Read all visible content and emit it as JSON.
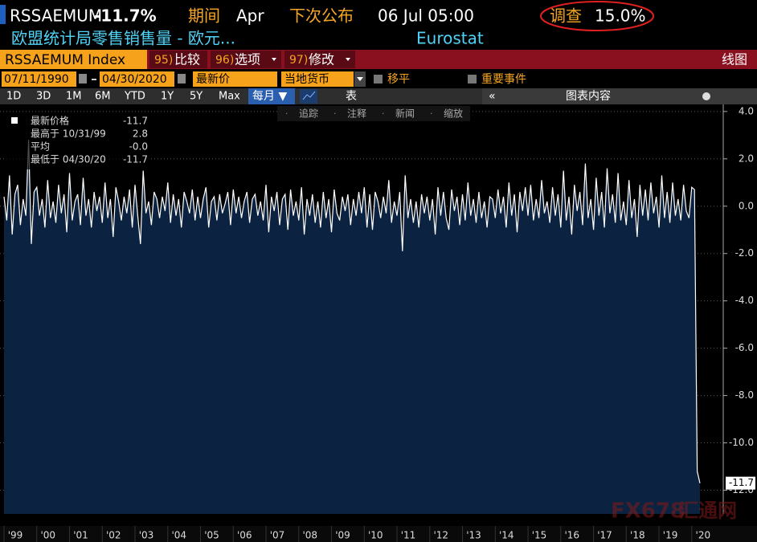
{
  "header": {
    "ticker": "RSSAEMUM",
    "last": "-11.7%",
    "period_label": "期间",
    "period": "Apr",
    "next_label": "下次公布",
    "next": "06 Jul 05:00",
    "survey_label": "调查",
    "survey": "15.0%",
    "description": "欧盟统计局零售销售量 - 欧元...",
    "source": "Eurostat"
  },
  "toolbar": {
    "security": "RSSAEMUM Index",
    "buttons": [
      {
        "num": "95)",
        "label": "比较"
      },
      {
        "num": "96)",
        "label": "选项"
      },
      {
        "num": "97)",
        "label": "修改"
      }
    ],
    "view": "线图",
    "start_date": "07/11/1990",
    "end_date": "04/30/2020",
    "price": "最新价",
    "currency": "当地货币",
    "smooth": "移平",
    "events": "重要事件",
    "ranges": [
      "1D",
      "3D",
      "1M",
      "6M",
      "YTD",
      "1Y",
      "5Y",
      "Max"
    ],
    "frequency": "每月 ▼",
    "table": "表",
    "content": "图表内容",
    "tools": [
      "追踪",
      "注释",
      "新闻",
      "缩放"
    ]
  },
  "watermark": {
    "brand": "FX678",
    "name": "汇通网"
  },
  "chart_data": {
    "type": "line",
    "legend_stats": [
      {
        "label": "最新价格",
        "value": "-11.7"
      },
      {
        "label": "最高于 10/31/99",
        "value": "2.8"
      },
      {
        "label": "平均",
        "value": "-0.0"
      },
      {
        "label": "最低于 04/30/20",
        "value": "-11.7"
      }
    ],
    "categories": [
      "'99",
      null,
      null,
      null,
      null,
      null,
      null,
      null,
      null,
      null,
      null,
      null,
      "'00",
      null,
      null,
      null,
      null,
      null,
      null,
      null,
      null,
      null,
      null,
      null,
      "'01",
      null,
      null,
      null,
      null,
      null,
      null,
      null,
      null,
      null,
      null,
      null,
      "'02",
      null,
      null,
      null,
      null,
      null,
      null,
      null,
      null,
      null,
      null,
      null,
      "'03",
      null,
      null,
      null,
      null,
      null,
      null,
      null,
      null,
      null,
      null,
      null,
      "'04",
      null,
      null,
      null,
      null,
      null,
      null,
      null,
      null,
      null,
      null,
      null,
      "'05",
      null,
      null,
      null,
      null,
      null,
      null,
      null,
      null,
      null,
      null,
      null,
      "'06",
      null,
      null,
      null,
      null,
      null,
      null,
      null,
      null,
      null,
      null,
      null,
      "'07",
      null,
      null,
      null,
      null,
      null,
      null,
      null,
      null,
      null,
      null,
      null,
      "'08",
      null,
      null,
      null,
      null,
      null,
      null,
      null,
      null,
      null,
      null,
      null,
      "'09",
      null,
      null,
      null,
      null,
      null,
      null,
      null,
      null,
      null,
      null,
      null,
      "'10",
      null,
      null,
      null,
      null,
      null,
      null,
      null,
      null,
      null,
      null,
      null,
      "'11",
      null,
      null,
      null,
      null,
      null,
      null,
      null,
      null,
      null,
      null,
      null,
      "'12",
      null,
      null,
      null,
      null,
      null,
      null,
      null,
      null,
      null,
      null,
      null,
      "'13",
      null,
      null,
      null,
      null,
      null,
      null,
      null,
      null,
      null,
      null,
      null,
      "'14",
      null,
      null,
      null,
      null,
      null,
      null,
      null,
      null,
      null,
      null,
      null,
      "'15",
      null,
      null,
      null,
      null,
      null,
      null,
      null,
      null,
      null,
      null,
      null,
      "'16",
      null,
      null,
      null,
      null,
      null,
      null,
      null,
      null,
      null,
      null,
      null,
      "'17",
      null,
      null,
      null,
      null,
      null,
      null,
      null,
      null,
      null,
      null,
      null,
      "'18",
      null,
      null,
      null,
      null,
      null,
      null,
      null,
      null,
      null,
      null,
      null,
      "'19",
      null,
      null,
      null,
      null,
      null,
      null,
      null,
      null,
      null,
      null,
      null,
      "'20",
      null,
      null,
      null
    ],
    "series": [
      {
        "name": "最新价格",
        "color": "#ffffff",
        "fill": "#0b2341",
        "values": [
          0.4,
          -0.6,
          1.3,
          -1.2,
          0.5,
          0.9,
          -0.8,
          0.3,
          -0.4,
          2.8,
          -1.6,
          0.6,
          0.8,
          -0.4,
          0.3,
          -0.9,
          1.1,
          -0.5,
          0.2,
          -0.7,
          0.9,
          -0.3,
          0.5,
          -1.1,
          1.4,
          -0.6,
          0.2,
          0.5,
          -0.8,
          1.2,
          -0.4,
          0.3,
          -0.9,
          0.6,
          -0.2,
          0.4,
          -0.7,
          1.0,
          -0.5,
          0.3,
          -1.3,
          0.8,
          0.2,
          -0.6,
          0.4,
          -0.3,
          0.7,
          -0.9,
          0.9,
          -0.4,
          -1.6,
          1.5,
          -0.3,
          0.2,
          -0.8,
          0.6,
          0.3,
          -0.5,
          0.4,
          -0.2,
          1.0,
          -0.7,
          0.5,
          -0.4,
          0.3,
          -0.9,
          0.6,
          0.2,
          -0.3,
          0.7,
          -0.6,
          0.4,
          -0.5,
          0.3,
          0.8,
          -0.9,
          0.2,
          0.4,
          -0.6,
          0.5,
          -0.3,
          0.1,
          0.6,
          -0.8,
          0.7,
          -0.3,
          0.4,
          -0.5,
          0.2,
          0.6,
          -0.7,
          0.3,
          0.5,
          -0.4,
          0.2,
          -0.6,
          0.9,
          -1.1,
          0.4,
          -0.2,
          0.6,
          -0.8,
          0.3,
          0.5,
          -1.0,
          0.7,
          -0.4,
          0.2,
          -0.6,
          0.8,
          -1.2,
          0.3,
          -0.4,
          0.5,
          -0.7,
          0.2,
          -0.9,
          0.6,
          -0.5,
          0.3,
          -1.1,
          0.7,
          -0.3,
          -0.6,
          0.4,
          -0.2,
          0.5,
          -0.8,
          0.3,
          -0.4,
          0.6,
          -0.3,
          0.8,
          -0.9,
          0.5,
          -1.0,
          0.6,
          0.2,
          -0.5,
          0.4,
          -0.3,
          1.1,
          -0.7,
          0.2,
          -0.4,
          0.6,
          -1.9,
          1.3,
          -0.5,
          0.3,
          -0.7,
          0.2,
          -0.9,
          0.5,
          -0.3,
          0.4,
          -0.6,
          0.3,
          -1.2,
          0.8,
          -0.4,
          0.6,
          -0.5,
          -1.0,
          0.7,
          -0.2,
          0.4,
          -0.8,
          0.5,
          -0.6,
          1.0,
          -0.4,
          0.3,
          -0.7,
          0.6,
          -0.5,
          0.2,
          -0.9,
          0.4,
          0.3,
          -0.5,
          0.7,
          -0.3,
          0.4,
          -0.9,
          1.0,
          -0.4,
          0.5,
          -1.1,
          0.6,
          -0.2,
          0.8,
          -0.4,
          0.9,
          -0.6,
          0.3,
          -0.5,
          1.1,
          -0.3,
          0.2,
          -0.7,
          0.8,
          -0.4,
          0.5,
          -0.9,
          1.5,
          -0.6,
          0.4,
          -1.2,
          0.9,
          -0.2,
          0.6,
          -0.8,
          1.8,
          -0.5,
          0.3,
          -1.0,
          1.2,
          -0.4,
          0.6,
          -0.9,
          1.6,
          -0.3,
          0.5,
          -0.7,
          1.4,
          -0.6,
          0.2,
          -0.8,
          1.1,
          -0.5,
          0.3,
          -1.3,
          0.9,
          -0.4,
          0.7,
          -0.6,
          1.0,
          -0.3,
          0.4,
          -0.9,
          1.3,
          -0.5,
          0.6,
          -0.7,
          1.0,
          -0.4,
          0.3,
          -0.6,
          0.9,
          -0.2,
          -0.5,
          0.8,
          0.7,
          -11.2,
          -11.7
        ]
      }
    ],
    "ylim": [
      -13,
      4.3
    ],
    "yticks": [
      {
        "value": 4,
        "label": "4.0"
      },
      {
        "value": 2,
        "label": "2.0"
      },
      {
        "value": 0,
        "label": "0.0"
      },
      {
        "value": -2,
        "label": "-2.0"
      },
      {
        "value": -4,
        "label": "-4.0"
      },
      {
        "value": -6,
        "label": "-6.0"
      },
      {
        "value": -8,
        "label": "-8.0"
      },
      {
        "value": -10,
        "label": "-10.0"
      },
      {
        "value": -12,
        "label": "-12.0"
      }
    ],
    "grid": true
  }
}
